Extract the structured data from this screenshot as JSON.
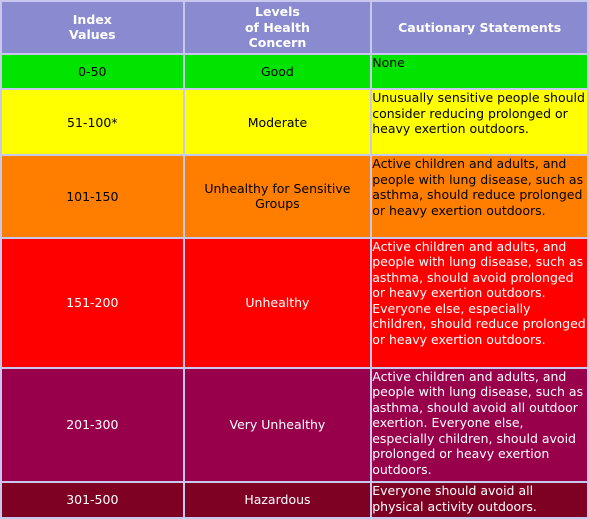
{
  "header": {
    "index_line1": "Index",
    "index_line2": "Values",
    "levels_line1": "Levels",
    "levels_line2": "of Health",
    "levels_line3": "Concern",
    "cautionary": "Cautionary Statements",
    "color": "#8a8ad0"
  },
  "rows": [
    {
      "index": "0-50",
      "level": "Good",
      "statement": "None",
      "color": "#00e400"
    },
    {
      "index": "51-100*",
      "level": "Moderate",
      "statement": "Unusually sensitive people should consider reducing prolonged or heavy exertion outdoors.",
      "color": "#ffff00"
    },
    {
      "index": "101-150",
      "level": "Unhealthy for Sensitive Groups",
      "statement": "Active children and adults, and people with lung disease, such as asthma, should reduce prolonged or heavy exertion outdoors.",
      "color": "#ff7e00"
    },
    {
      "index": "151-200",
      "level": "Unhealthy",
      "statement": "Active children and adults, and people with lung disease, such as asthma, should avoid prolonged or heavy exertion outdoors. Everyone else, especially children, should reduce prolonged or heavy exertion outdoors.",
      "color": "#ff0000"
    },
    {
      "index": "201-300",
      "level": "Very Unhealthy",
      "statement": "Active children and adults, and people with lung disease, such as asthma, should avoid all outdoor exertion. Everyone else, especially children, should avoid prolonged or heavy exertion outdoors.",
      "color": "#99004c"
    },
    {
      "index": "301-500",
      "level": "Hazardous",
      "statement": "Everyone should avoid all physical activity outdoors.",
      "color": "#7e0023"
    }
  ]
}
